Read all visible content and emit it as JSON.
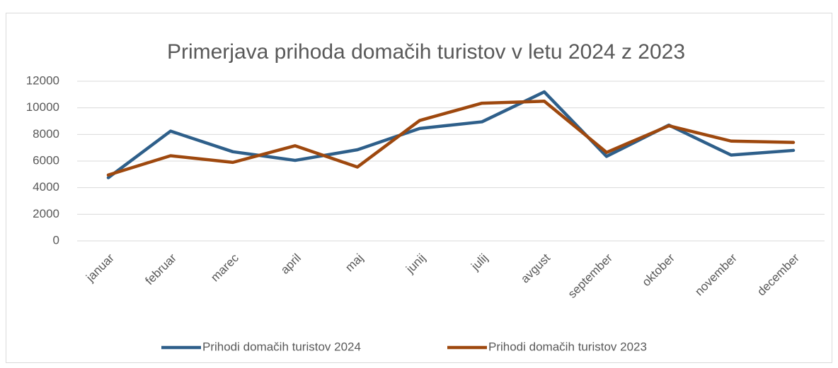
{
  "chart_data": {
    "type": "line",
    "title": "Primerjava prihoda domačih turistov v letu 2024 z 2023",
    "categories": [
      "januar",
      "februar",
      "marec",
      "april",
      "maj",
      "junij",
      "julij",
      "avgust",
      "september",
      "oktober",
      "november",
      "december"
    ],
    "series": [
      {
        "name": "Prihodi domačih turistov 2024",
        "color": "#2e5f8a",
        "values": [
          4750,
          8250,
          6700,
          6050,
          6850,
          8450,
          8950,
          11200,
          6350,
          8700,
          6450,
          6800
        ]
      },
      {
        "name": "Prihodi domačih turistov 2023",
        "color": "#9e480e",
        "values": [
          4950,
          6400,
          5900,
          7150,
          5550,
          9050,
          10350,
          10500,
          6650,
          8650,
          7500,
          7400
        ]
      }
    ],
    "ylim": [
      0,
      12000
    ],
    "yticks": [
      0,
      2000,
      4000,
      6000,
      8000,
      10000,
      12000
    ],
    "grid": true,
    "legend": "bottom"
  }
}
